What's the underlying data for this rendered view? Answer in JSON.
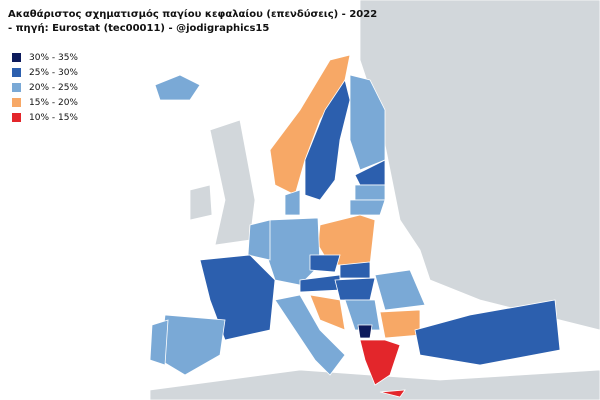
{
  "header": {
    "title_lines": [
      "Ακαθάριστος σχηματισμός παγίου κεφαλαίου (επενδύσεις) - 2022",
      "- πηγή: Eurostat (tec00011) - @jodigraphics15"
    ]
  },
  "legend": {
    "items": [
      {
        "label": "30% - 35%",
        "color": "#0d1b5c"
      },
      {
        "label": "25% - 30%",
        "color": "#2c5fae"
      },
      {
        "label": "20% - 25%",
        "color": "#7aa9d6"
      },
      {
        "label": "15% - 20%",
        "color": "#f7a866"
      },
      {
        "label": "10% - 15%",
        "color": "#e3262b"
      }
    ]
  }
}
